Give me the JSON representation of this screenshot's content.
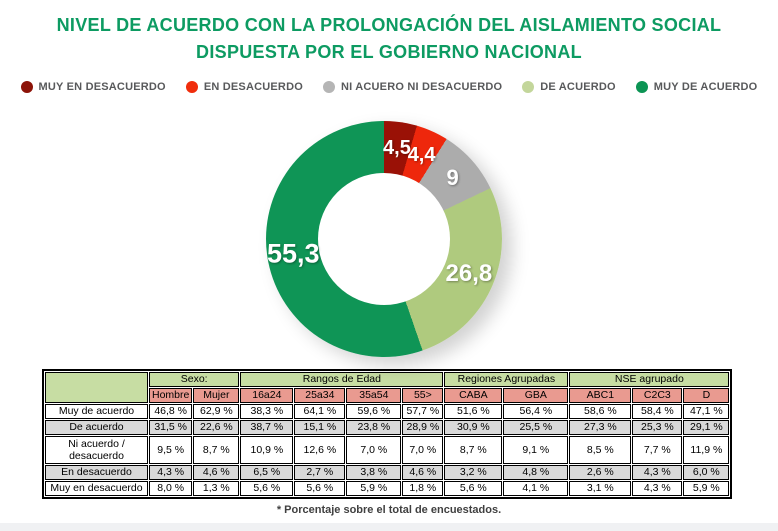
{
  "title": "NIVEL DE ACUERDO CON LA PROLONGACIÓN DEL AISLAMIENTO SOCIAL DISPUESTA POR EL GOBIERNO NACIONAL",
  "footnote": "* Porcentaje sobre el total de encuestados.",
  "colors": {
    "title_green": "#0D9B62",
    "legend_text": "#58595B",
    "muy_en_desacuerdo": "#9A1106",
    "en_desacuerdo": "#EE270C",
    "ni_acuerdo": "#ACACAC",
    "de_acuerdo": "#AFCA7E",
    "muy_de_acuerdo": "#0F9556",
    "table_group_header_bg": "#C7DDA3",
    "table_subheader_bg": "#E99A90",
    "table_corner_bg": "#C1C1C1",
    "table_alt_row_bg": "#D9D9D9"
  },
  "legend": {
    "items": [
      {
        "label": "MUY EN DESACUERDO",
        "color": "#8C1308"
      },
      {
        "label": "EN DESACUERDO",
        "color": "#F02D0C"
      },
      {
        "label": "NI ACUERO NI DESACUERDO",
        "color": "#B5B5B5"
      },
      {
        "label": "DE ACUERDO",
        "color": "#C3D69B"
      },
      {
        "label": "MUY DE ACUERDO",
        "color": "#0C9454"
      }
    ]
  },
  "chart_data": {
    "type": "pie",
    "subtype": "donut",
    "title": "Nivel de acuerdo con la prolongación del aislamiento social dispuesta por el gobierno nacional",
    "unit": "percent",
    "start_angle_deg": 0,
    "direction": "clockwise",
    "donut_hole_ratio": 0.56,
    "slices": [
      {
        "name": "Muy en desacuerdo",
        "label": "4,5",
        "value": 4.5,
        "color": "#9A1106",
        "label_size": 20
      },
      {
        "name": "En desacuerdo",
        "label": "4,4",
        "value": 4.4,
        "color": "#EE270C",
        "label_size": 20
      },
      {
        "name": "Ni acuerdo ni desacuerdo",
        "label": "9",
        "value": 9.0,
        "color": "#ACACAC",
        "label_size": 22
      },
      {
        "name": "De acuerdo",
        "label": "26,8",
        "value": 26.8,
        "color": "#AFCA7E",
        "label_size": 24
      },
      {
        "name": "Muy de acuerdo",
        "label": "55,3",
        "value": 55.3,
        "color": "#0F9556",
        "label_size": 27
      }
    ]
  },
  "table": {
    "group_headers": [
      {
        "label": "Sexo:",
        "span": 2
      },
      {
        "label": "Rangos de Edad",
        "span": 4
      },
      {
        "label": "Regiones Agrupadas",
        "span": 2
      },
      {
        "label": "NSE agrupado",
        "span": 3
      }
    ],
    "columns": [
      "Hombre",
      "Mujer",
      "16a24",
      "25a34",
      "35a54",
      "55>",
      "CABA",
      "GBA",
      "ABC1",
      "C2C3",
      "D"
    ],
    "rows": [
      {
        "label": "Muy de acuerdo",
        "values": [
          "46,8 %",
          "62,9 %",
          "38,3 %",
          "64,1 %",
          "59,6 %",
          "57,7 %",
          "51,6 %",
          "56,4 %",
          "58,6 %",
          "58,4 %",
          "47,1 %"
        ]
      },
      {
        "label": "De acuerdo",
        "values": [
          "31,5 %",
          "22,6 %",
          "38,7 %",
          "15,1 %",
          "23,8 %",
          "28,9 %",
          "30,9 %",
          "25,5 %",
          "27,3 %",
          "25,3 %",
          "29,1 %"
        ]
      },
      {
        "label": "Ni acuerdo / desacuerdo",
        "values": [
          "9,5 %",
          "8,7 %",
          "10,9 %",
          "12,6 %",
          "7,0 %",
          "7,0 %",
          "8,7 %",
          "9,1 %",
          "8,5 %",
          "7,7 %",
          "11,9 %"
        ]
      },
      {
        "label": "En desacuerdo",
        "values": [
          "4,3 %",
          "4,6 %",
          "6,5 %",
          "2,7 %",
          "3,8 %",
          "4,6 %",
          "3,2 %",
          "4,8 %",
          "2,6 %",
          "4,3 %",
          "6,0 %"
        ]
      },
      {
        "label": "Muy en desacuerdo",
        "values": [
          "8,0 %",
          "1,3 %",
          "5,6 %",
          "5,6 %",
          "5,9 %",
          "1,8 %",
          "5,6 %",
          "4,1 %",
          "3,1 %",
          "4,3 %",
          "5,9 %"
        ]
      }
    ]
  }
}
